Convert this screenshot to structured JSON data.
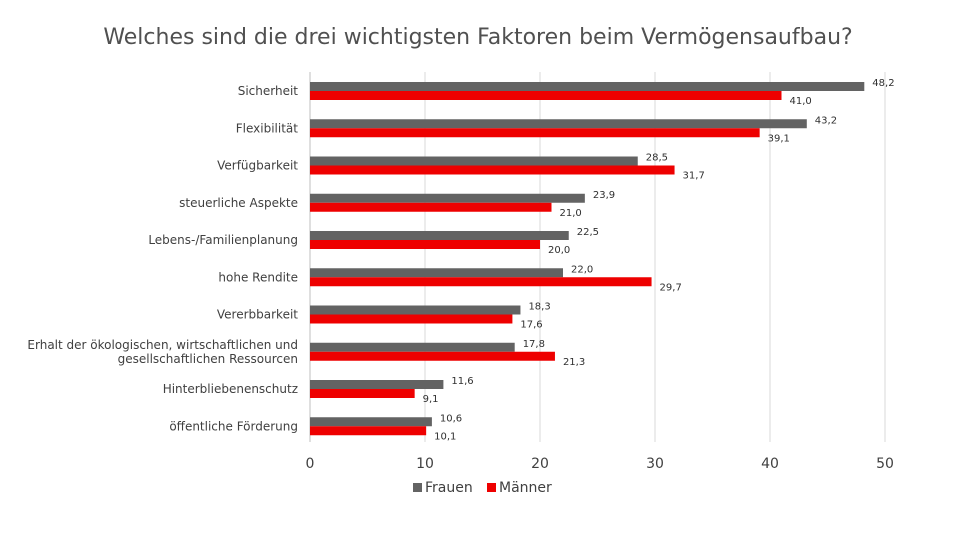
{
  "chart_data": {
    "type": "bar",
    "orientation": "horizontal",
    "title": "Welches sind die drei wichtigsten Faktoren beim Vermögensaufbau?",
    "categories": [
      "Sicherheit",
      "Flexibilität",
      "Verfügbarkeit",
      "steuerliche Aspekte",
      "Lebens-/Familienplanung",
      "hohe Rendite",
      "Vererbbarkeit",
      [
        "Erhalt der ökologischen, wirtschaftlichen und",
        "gesellschaftlichen Ressourcen"
      ],
      "Hinterbliebenenschutz",
      "öffentliche Förderung"
    ],
    "series": [
      {
        "name": "Frauen",
        "color": "#636363",
        "values": [
          48.2,
          43.2,
          28.5,
          23.9,
          22.5,
          22.0,
          18.3,
          17.8,
          11.6,
          10.6
        ],
        "labels": [
          "48,2",
          "43,2",
          "28,5",
          "23,9",
          "22,5",
          "22,0",
          "18,3",
          "17,8",
          "11,6",
          "10,6"
        ]
      },
      {
        "name": "Männer",
        "color": "#ee0000",
        "values": [
          41.0,
          39.1,
          31.7,
          21.0,
          20.0,
          29.7,
          17.6,
          21.3,
          9.1,
          10.1
        ],
        "labels": [
          "41,0",
          "39,1",
          "31,7",
          "21,0",
          "20,0",
          "29,7",
          "17,6",
          "21,3",
          "9,1",
          "10,1"
        ]
      }
    ],
    "xlim": [
      0,
      50
    ],
    "xticks": [
      0,
      10,
      20,
      30,
      40,
      50
    ],
    "xtick_labels": [
      "0",
      "10",
      "20",
      "30",
      "40",
      "50"
    ],
    "grid": true,
    "legend": "bottom"
  }
}
